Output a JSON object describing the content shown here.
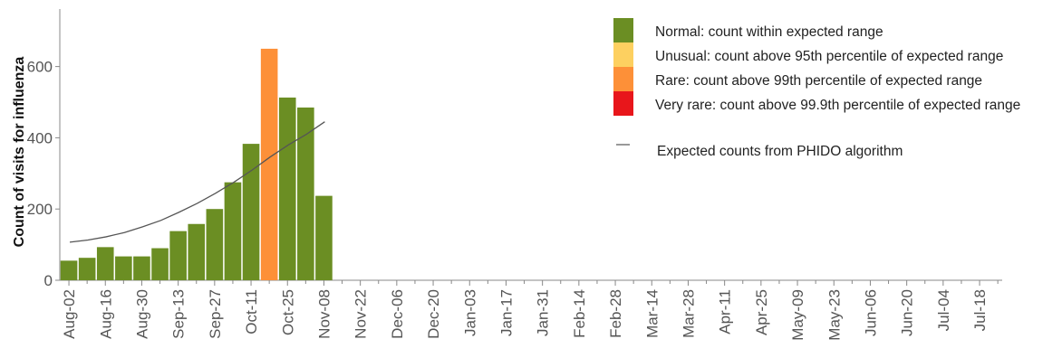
{
  "chart_data": {
    "type": "bar",
    "ylabel": "Count of visits for influenza",
    "ylim": [
      0,
      720
    ],
    "yticks": [
      0,
      200,
      400,
      600
    ],
    "week_count": 52,
    "x_tick_labels": [
      "Aug-02",
      "Aug-16",
      "Aug-30",
      "Sep-13",
      "Sep-27",
      "Oct-11",
      "Oct-25",
      "Nov-08",
      "Nov-22",
      "Dec-06",
      "Dec-20",
      "Jan-03",
      "Jan-17",
      "Jan-31",
      "Feb-14",
      "Feb-28",
      "Mar-14",
      "Mar-28",
      "Apr-11",
      "Apr-25",
      "May-09",
      "May-23",
      "Jun-06",
      "Jun-20",
      "Jul-04",
      "Jul-18"
    ],
    "series": [
      {
        "name": "Count of visits",
        "values": [
          55,
          63,
          93,
          67,
          67,
          90,
          138,
          158,
          200,
          275,
          383,
          650,
          513,
          485,
          237
        ],
        "categories": [
          "Normal",
          "Normal",
          "Normal",
          "Normal",
          "Normal",
          "Normal",
          "Normal",
          "Normal",
          "Normal",
          "Normal",
          "Normal",
          "Rare",
          "Normal",
          "Normal",
          "Normal"
        ]
      }
    ],
    "expected_line": {
      "name": "Expected counts from PHIDO algorithm",
      "values": [
        107,
        113,
        122,
        134,
        150,
        168,
        191,
        216,
        244,
        275,
        309,
        346,
        380,
        410,
        445
      ]
    },
    "legend": {
      "position": "top-right",
      "entries": [
        {
          "key": "Normal",
          "label": "Normal: count within expected range",
          "color": "#6b8e23"
        },
        {
          "key": "Unusual",
          "label": "Unusual: count above 95th percentile of expected range",
          "color": "#fdd060"
        },
        {
          "key": "Rare",
          "label": "Rare: count above 99th percentile of expected range",
          "color": "#fd9038"
        },
        {
          "key": "Very rare",
          "label": "Very rare: count above 99.9th percentile of expected range",
          "color": "#e8161b"
        }
      ],
      "line_label": "Expected counts from PHIDO algorithm",
      "line_color": "#555555"
    },
    "grid": false
  }
}
